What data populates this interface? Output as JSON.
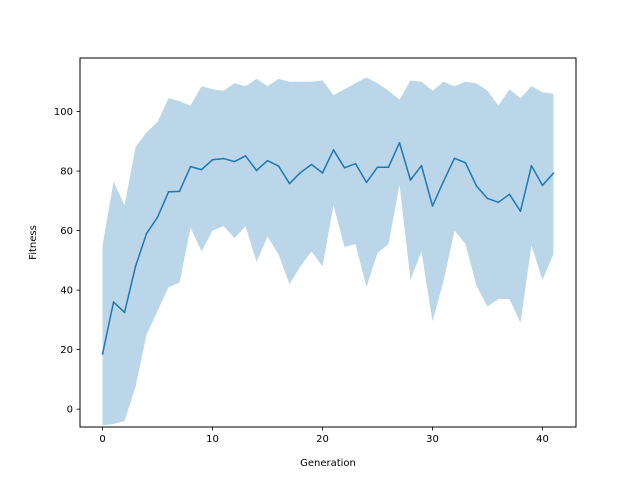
{
  "chart_data": {
    "type": "line",
    "title": "",
    "xlabel": "Generation",
    "ylabel": "Fitness",
    "xlim": [
      -2.05,
      43.05
    ],
    "ylim": [
      -6,
      118
    ],
    "xticks": [
      0,
      10,
      20,
      30,
      40
    ],
    "yticks": [
      0,
      20,
      40,
      60,
      80,
      100
    ],
    "grid": false,
    "legend": "none",
    "colors": {
      "line": "#1f77b4",
      "band": "#1f77b4",
      "band_opacity": 0.3
    },
    "x": [
      0,
      1,
      2,
      3,
      4,
      5,
      6,
      7,
      8,
      9,
      10,
      11,
      12,
      13,
      14,
      15,
      16,
      17,
      18,
      19,
      20,
      21,
      22,
      23,
      24,
      25,
      26,
      27,
      28,
      29,
      30,
      31,
      32,
      33,
      34,
      35,
      36,
      37,
      38,
      39,
      40,
      41
    ],
    "series": [
      {
        "values": [
          18.5,
          36,
          32.5,
          48,
          59,
          64.5,
          73,
          73.2,
          81.5,
          80.5,
          83.8,
          84.2,
          83.2,
          85.1,
          80.2,
          83.5,
          81.7,
          75.8,
          79.5,
          82.2,
          79.4,
          87.1,
          81.1,
          82.5,
          76.2,
          81.3,
          81.3,
          89.5,
          77,
          81.8,
          68.3,
          76.5,
          84.3,
          82.8,
          75,
          70.8,
          69.5,
          72.2,
          66.5,
          81.8,
          75.2,
          79.3
        ],
        "lower": [
          -5.5,
          -5,
          -4,
          7.5,
          25,
          33,
          41,
          42.5,
          61,
          53,
          60,
          61.5,
          57.5,
          61.5,
          49.5,
          58,
          52,
          42,
          48,
          53,
          48,
          68.5,
          54.5,
          55.5,
          41,
          52.5,
          55.5,
          75.5,
          43.5,
          53,
          29.5,
          43,
          60,
          55.5,
          41.5,
          34.5,
          37,
          37,
          29,
          55,
          43.5,
          52
        ],
        "upper": [
          55,
          76.5,
          68.5,
          88,
          93,
          96.5,
          104.5,
          103.5,
          102,
          108.5,
          107.5,
          107,
          109.5,
          108.5,
          111,
          108.5,
          111,
          110,
          110,
          110,
          110.5,
          105.5,
          107.5,
          109.5,
          111.5,
          109.5,
          107,
          104,
          110.5,
          110,
          107,
          110,
          108.5,
          110,
          109.5,
          107,
          102,
          107.5,
          104.5,
          108.5,
          106.5,
          106
        ]
      }
    ]
  }
}
